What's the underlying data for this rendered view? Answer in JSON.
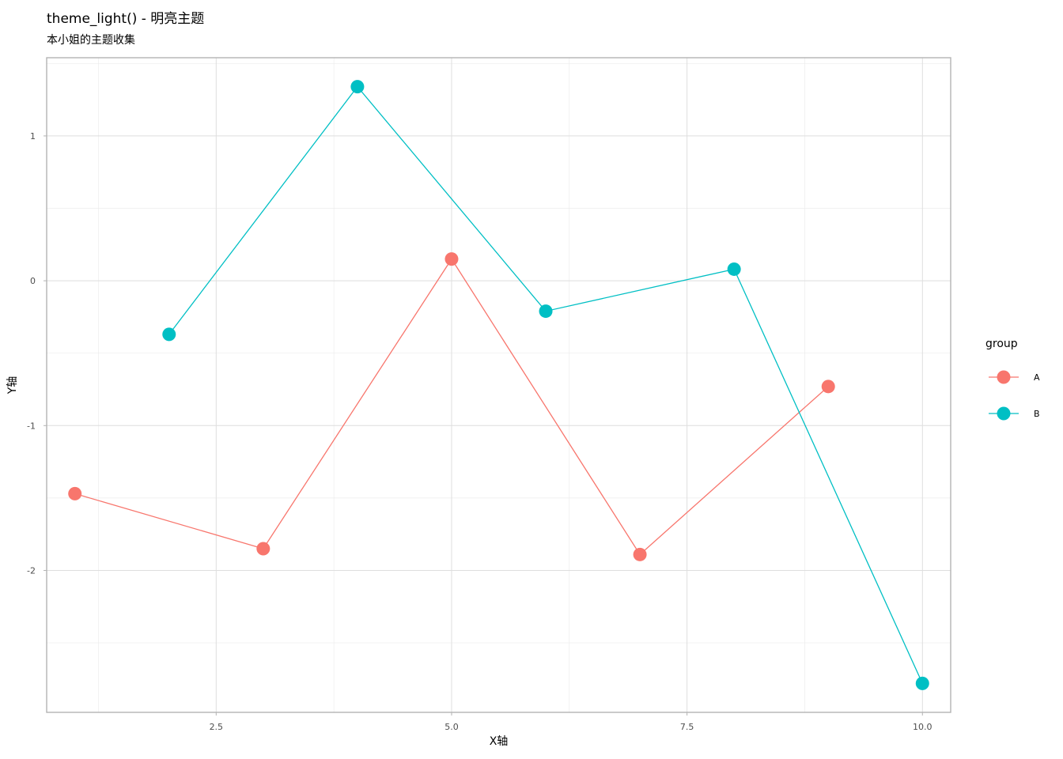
{
  "chart_data": {
    "type": "line",
    "title": "theme_light() - 明亮主题",
    "subtitle": "本小姐的主题收集",
    "xlabel": "X轴",
    "ylabel": "Y轴",
    "xlim": [
      0.7,
      10.3
    ],
    "ylim": [
      -2.98,
      1.54
    ],
    "x_ticks": [
      2.5,
      5.0,
      7.5,
      10.0
    ],
    "x_tick_labels": [
      "2.5",
      "5.0",
      "7.5",
      "10.0"
    ],
    "y_ticks": [
      -2,
      -1,
      0,
      1
    ],
    "y_tick_labels": [
      "-2",
      "-1",
      "0",
      "1"
    ],
    "grid": true,
    "legend": {
      "title": "group",
      "position": "right"
    },
    "series": [
      {
        "name": "A",
        "color": "#F8766D",
        "x": [
          1,
          3,
          5,
          7,
          9
        ],
        "y": [
          -1.47,
          -1.85,
          0.15,
          -1.89,
          -0.73
        ]
      },
      {
        "name": "B",
        "color": "#00BFC4",
        "x": [
          2,
          4,
          6,
          8,
          10
        ],
        "y": [
          -0.37,
          1.34,
          -0.21,
          0.08,
          -2.78
        ]
      }
    ]
  }
}
